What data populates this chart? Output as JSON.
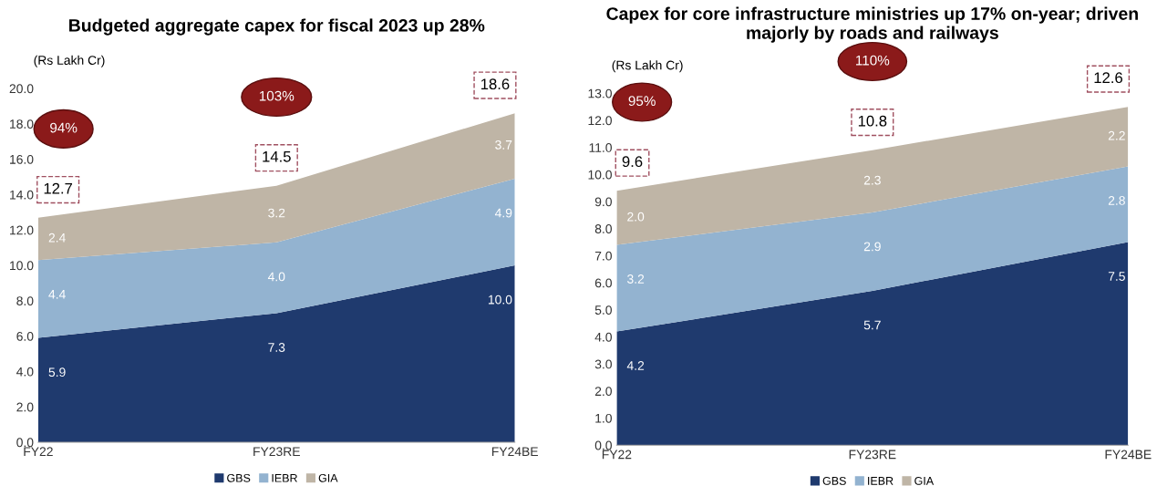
{
  "chart_data": [
    {
      "type": "area",
      "stacked": true,
      "title": "Budgeted aggregate capex for fiscal 2023 up 28%",
      "ylabel": "(Rs Lakh Cr)",
      "categories": [
        "FY22",
        "FY23RE",
        "FY24BE"
      ],
      "series": [
        {
          "name": "GBS",
          "color": "#1f3a6e",
          "values": [
            5.9,
            7.3,
            10.0
          ],
          "value_labels": [
            "5.9",
            "7.3",
            "10.0"
          ]
        },
        {
          "name": "IEBR",
          "color": "#93b3d0",
          "values": [
            4.4,
            4.0,
            4.9
          ],
          "value_labels": [
            "4.4",
            "4.0",
            "4.9"
          ]
        },
        {
          "name": "GIA",
          "color": "#bfb5a6",
          "values": [
            2.4,
            3.2,
            3.7
          ],
          "value_labels": [
            "2.4",
            "3.2",
            "3.7"
          ]
        }
      ],
      "ylim": [
        0,
        20
      ],
      "yticks": [
        {
          "value": 0,
          "label": "0.0"
        },
        {
          "value": 2,
          "label": "2.0"
        },
        {
          "value": 4,
          "label": "4.0"
        },
        {
          "value": 6,
          "label": "6.0"
        },
        {
          "value": 8,
          "label": "8.0"
        },
        {
          "value": 10,
          "label": "10.0"
        },
        {
          "value": 12,
          "label": "12.0"
        },
        {
          "value": 14,
          "label": "14.0"
        },
        {
          "value": 16,
          "label": "16.0"
        },
        {
          "value": 18,
          "label": "18.0"
        },
        {
          "value": 20,
          "label": "20.0"
        }
      ],
      "totals": [
        "12.7",
        "14.5",
        "18.6"
      ],
      "annotations": [
        "94%",
        "103%"
      ],
      "grid": false,
      "legend": "bottom"
    },
    {
      "type": "area",
      "stacked": true,
      "title": "Capex for core infrastructure ministries up 17% on-year; driven majorly by roads and railways",
      "ylabel": "(Rs Lakh Cr)",
      "categories": [
        "FY22",
        "FY23RE",
        "FY24BE"
      ],
      "series": [
        {
          "name": "GBS",
          "color": "#1f3a6e",
          "values": [
            4.2,
            5.7,
            7.5
          ],
          "value_labels": [
            "4.2",
            "5.7",
            "7.5"
          ]
        },
        {
          "name": "IEBR",
          "color": "#93b3d0",
          "values": [
            3.2,
            2.9,
            2.8
          ],
          "value_labels": [
            "3.2",
            "2.9",
            "2.8"
          ]
        },
        {
          "name": "GIA",
          "color": "#bfb5a6",
          "values": [
            2.0,
            2.3,
            2.2
          ],
          "value_labels": [
            "2.0",
            "2.3",
            "2.2"
          ]
        }
      ],
      "ylim": [
        0,
        13
      ],
      "yticks": [
        {
          "value": 0,
          "label": "0.0"
        },
        {
          "value": 1,
          "label": "1.0"
        },
        {
          "value": 2,
          "label": "2.0"
        },
        {
          "value": 3,
          "label": "3.0"
        },
        {
          "value": 4,
          "label": "4.0"
        },
        {
          "value": 5,
          "label": "5.0"
        },
        {
          "value": 6,
          "label": "6.0"
        },
        {
          "value": 7,
          "label": "7.0"
        },
        {
          "value": 8,
          "label": "8.0"
        },
        {
          "value": 9,
          "label": "9.0"
        },
        {
          "value": 10,
          "label": "10.0"
        },
        {
          "value": 11,
          "label": "11.0"
        },
        {
          "value": 12,
          "label": "12.0"
        },
        {
          "value": 13,
          "label": "13.0"
        }
      ],
      "totals": [
        "9.6",
        "10.8",
        "12.6"
      ],
      "annotations": [
        "95%",
        "110%"
      ],
      "grid": false,
      "legend": "bottom"
    }
  ]
}
